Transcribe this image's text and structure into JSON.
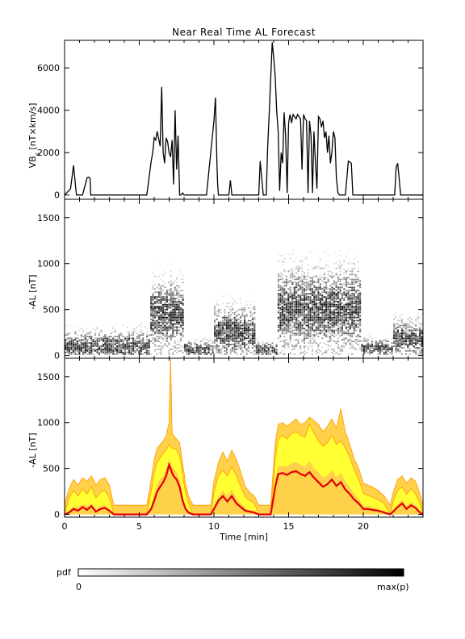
{
  "title": "Near Real Time AL Forecast",
  "colorbar": {
    "label": "pdf",
    "min_label": "0",
    "max_label": "max(p)"
  },
  "colors": {
    "axis": "#000000",
    "line": "#000000",
    "band_outer": "#ffd04a",
    "band_inner": "#ffff33",
    "envelope": "#ff9900",
    "median": "#e00000",
    "pdf": "#000000"
  },
  "chart_data": [
    {
      "type": "line",
      "panel": "top",
      "ylabel_main": "VB",
      "ylabel_sub": "s",
      "ylabel_rest": " [nT×km/s]",
      "xlim": [
        0,
        24
      ],
      "ylim": [
        -200,
        7300
      ],
      "yticks": [
        0,
        2000,
        4000,
        6000
      ],
      "xticks": [
        0,
        5,
        10,
        15,
        20
      ],
      "x": [
        0,
        0.4,
        0.6,
        0.75,
        0.8,
        0.9,
        1.2,
        1.5,
        1.6,
        1.7,
        1.75,
        1.9,
        2.0,
        2.1,
        2.5,
        3,
        3.5,
        4,
        4.5,
        5,
        5.5,
        5.8,
        5.9,
        6.0,
        6.1,
        6.2,
        6.4,
        6.5,
        6.6,
        6.7,
        6.8,
        6.9,
        7.0,
        7.1,
        7.2,
        7.3,
        7.4,
        7.5,
        7.6,
        7.7,
        7.8,
        7.9,
        8.0,
        8.5,
        9,
        9.5,
        10.0,
        10.1,
        10.2,
        10.25,
        10.3,
        10.4,
        10.5,
        10.6,
        10.8,
        11.0,
        11.1,
        11.2,
        11.5,
        12,
        12.5,
        12.8,
        13.0,
        13.1,
        13.3,
        13.5,
        13.6,
        13.7,
        13.8,
        13.9,
        14.0,
        14.1,
        14.2,
        14.3,
        14.4,
        14.5,
        14.6,
        14.7,
        14.8,
        14.9,
        15.0,
        15.1,
        15.2,
        15.3,
        15.4,
        15.5,
        15.6,
        15.7,
        15.8,
        15.9,
        16.0,
        16.1,
        16.2,
        16.3,
        16.4,
        16.5,
        16.6,
        16.7,
        16.8,
        16.9,
        17.0,
        17.1,
        17.2,
        17.3,
        17.4,
        17.5,
        17.6,
        17.7,
        17.8,
        17.9,
        18.0,
        18.1,
        18.2,
        18.3,
        18.4,
        18.5,
        18.6,
        18.7,
        18.8,
        19.0,
        19.2,
        19.3,
        19.4,
        19.5,
        19.6,
        19.8,
        20,
        20.5,
        21,
        21.5,
        21.9,
        22.0,
        22.1,
        22.2,
        22.3,
        22.4,
        22.5,
        23,
        23.5,
        24
      ],
      "y": [
        0,
        300,
        1400,
        300,
        0,
        0,
        0,
        800,
        850,
        800,
        0,
        0,
        0,
        0,
        0,
        0,
        0,
        0,
        0,
        0,
        0,
        1600,
        2000,
        2700,
        2600,
        3000,
        2300,
        5100,
        2000,
        1500,
        2700,
        2500,
        2000,
        1800,
        2600,
        500,
        4000,
        1200,
        2800,
        0,
        0,
        100,
        0,
        0,
        0,
        0,
        3500,
        4600,
        1500,
        500,
        0,
        0,
        0,
        0,
        0,
        0,
        700,
        0,
        0,
        0,
        0,
        0,
        0,
        1600,
        0,
        0,
        2300,
        3800,
        5500,
        7200,
        6500,
        5600,
        4000,
        3000,
        200,
        2000,
        1500,
        3900,
        2800,
        100,
        3400,
        3800,
        3400,
        3800,
        3700,
        3600,
        3800,
        3700,
        3600,
        1200,
        3800,
        3600,
        3500,
        100,
        3500,
        2800,
        100,
        3000,
        1500,
        300,
        3700,
        3600,
        3200,
        3500,
        2700,
        3000,
        2000,
        2800,
        1500,
        2000,
        3000,
        2700,
        800,
        100,
        0,
        0,
        0,
        0,
        0,
        1600,
        1500,
        0,
        0,
        0,
        0,
        0,
        0,
        0,
        0,
        0,
        0,
        0,
        0,
        1300,
        1500,
        800,
        0,
        0,
        0,
        0
      ]
    },
    {
      "type": "heatmap",
      "panel": "middle",
      "ylabel": "-AL [nT]",
      "xlim": [
        0,
        24
      ],
      "ylim": [
        -30,
        1700
      ],
      "yticks": [
        0,
        500,
        1000,
        1500
      ],
      "xticks": [
        0,
        5,
        10,
        15,
        20
      ],
      "activity_windows": [
        {
          "x0": 0.0,
          "x1": 5.8,
          "center": 100,
          "spread": 150,
          "peak": 360
        },
        {
          "x0": 5.8,
          "x1": 8.0,
          "center": 450,
          "spread": 320,
          "peak": 1600
        },
        {
          "x0": 8.0,
          "x1": 10.0,
          "center": 60,
          "spread": 90,
          "peak": 220
        },
        {
          "x0": 10.0,
          "x1": 12.8,
          "center": 250,
          "spread": 250,
          "peak": 700
        },
        {
          "x0": 12.8,
          "x1": 14.3,
          "center": 60,
          "spread": 80,
          "peak": 200
        },
        {
          "x0": 14.3,
          "x1": 19.8,
          "center": 500,
          "spread": 400,
          "peak": 1150
        },
        {
          "x0": 19.8,
          "x1": 22.0,
          "center": 80,
          "spread": 90,
          "peak": 250
        },
        {
          "x0": 22.0,
          "x1": 24.0,
          "center": 180,
          "spread": 180,
          "peak": 480
        }
      ]
    },
    {
      "type": "area",
      "panel": "bottom",
      "ylabel": "-AL [nT]",
      "xlabel": "Time [min]",
      "xlim": [
        0,
        24
      ],
      "ylim": [
        -30,
        1700
      ],
      "yticks": [
        0,
        500,
        1000,
        1500
      ],
      "xticks": [
        0,
        5,
        10,
        15,
        20
      ],
      "xtick_labels": [
        "0",
        "5",
        "10",
        "15",
        "20"
      ],
      "x": [
        0,
        0.3,
        0.6,
        0.9,
        1.2,
        1.5,
        1.8,
        2.1,
        2.4,
        2.7,
        3.0,
        3.3,
        3.6,
        4.0,
        4.5,
        5.0,
        5.5,
        5.8,
        6.0,
        6.2,
        6.4,
        6.6,
        6.8,
        7.0,
        7.1,
        7.2,
        7.3,
        7.5,
        7.7,
        7.9,
        8.1,
        8.3,
        8.6,
        9.0,
        9.4,
        9.8,
        10.0,
        10.3,
        10.6,
        10.9,
        11.2,
        11.5,
        11.8,
        12.1,
        12.4,
        12.7,
        13.0,
        13.4,
        13.8,
        14.1,
        14.3,
        14.6,
        14.9,
        15.2,
        15.5,
        15.8,
        16.1,
        16.4,
        16.7,
        17.0,
        17.3,
        17.6,
        17.9,
        18.2,
        18.5,
        18.8,
        19.1,
        19.4,
        19.7,
        20.0,
        20.3,
        20.6,
        21.0,
        21.4,
        21.8,
        22.0,
        22.3,
        22.6,
        22.9,
        23.2,
        23.5,
        23.8,
        24.0
      ],
      "median": [
        0,
        20,
        60,
        40,
        80,
        50,
        90,
        30,
        60,
        70,
        40,
        0,
        0,
        0,
        0,
        0,
        0,
        60,
        150,
        250,
        300,
        350,
        420,
        540,
        500,
        450,
        420,
        380,
        300,
        150,
        60,
        20,
        0,
        0,
        0,
        0,
        60,
        150,
        200,
        140,
        200,
        120,
        80,
        40,
        30,
        20,
        0,
        0,
        0,
        300,
        440,
        450,
        430,
        460,
        470,
        440,
        420,
        460,
        400,
        350,
        300,
        330,
        380,
        310,
        350,
        270,
        220,
        160,
        120,
        60,
        60,
        50,
        40,
        20,
        0,
        30,
        80,
        120,
        60,
        100,
        70,
        20,
        0
      ],
      "inner_low": [
        0,
        40,
        90,
        80,
        110,
        90,
        120,
        60,
        90,
        100,
        70,
        0,
        0,
        0,
        0,
        0,
        0,
        100,
        220,
        330,
        380,
        420,
        500,
        600,
        560,
        520,
        500,
        460,
        380,
        200,
        90,
        40,
        0,
        0,
        0,
        0,
        90,
        200,
        260,
        200,
        270,
        180,
        120,
        70,
        50,
        40,
        0,
        0,
        0,
        380,
        520,
        530,
        520,
        560,
        570,
        540,
        520,
        580,
        500,
        460,
        400,
        430,
        480,
        410,
        450,
        360,
        300,
        220,
        170,
        90,
        90,
        80,
        60,
        40,
        0,
        50,
        110,
        160,
        90,
        140,
        100,
        40,
        0
      ],
      "inner_high": [
        0,
        180,
        260,
        200,
        280,
        220,
        300,
        180,
        240,
        260,
        180,
        0,
        0,
        0,
        0,
        0,
        0,
        250,
        450,
        560,
        620,
        660,
        700,
        760,
        740,
        720,
        720,
        700,
        640,
        440,
        230,
        120,
        0,
        0,
        0,
        0,
        240,
        420,
        480,
        420,
        520,
        420,
        300,
        190,
        150,
        120,
        0,
        0,
        0,
        600,
        820,
        860,
        820,
        880,
        900,
        860,
        840,
        980,
        880,
        800,
        740,
        780,
        860,
        760,
        800,
        720,
        620,
        480,
        380,
        230,
        210,
        190,
        160,
        120,
        0,
        140,
        260,
        300,
        220,
        280,
        220,
        120,
        0
      ],
      "outer_high": [
        100,
        280,
        380,
        320,
        400,
        360,
        420,
        320,
        380,
        400,
        320,
        100,
        100,
        100,
        100,
        100,
        100,
        380,
        600,
        720,
        760,
        800,
        860,
        1000,
        1700,
        900,
        860,
        820,
        780,
        560,
        340,
        200,
        100,
        100,
        100,
        100,
        360,
        560,
        680,
        580,
        700,
        600,
        460,
        300,
        240,
        200,
        100,
        100,
        100,
        780,
        980,
        1000,
        960,
        1000,
        1040,
        980,
        1000,
        1060,
        1020,
        980,
        900,
        960,
        1040,
        940,
        1150,
        900,
        760,
        600,
        500,
        340,
        320,
        300,
        260,
        200,
        100,
        240,
        380,
        420,
        340,
        400,
        360,
        220,
        100
      ]
    }
  ]
}
